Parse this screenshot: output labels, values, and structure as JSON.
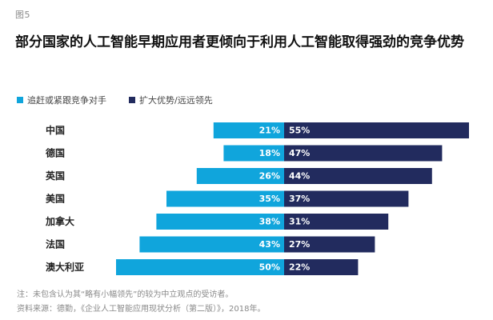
{
  "figure_label": "图5",
  "title": "部分国家的人工智能早期应用者更倾向于利用人工智能取得强劲的竞争优势",
  "legend": [
    {
      "label": "追赶或紧跟竞争对手",
      "color": "#10a5dc"
    },
    {
      "label": "扩大优势/远远领先",
      "color": "#222b5e"
    }
  ],
  "chart_data": {
    "type": "bar",
    "orientation": "horizontal-diverging",
    "categories": [
      "中国",
      "德国",
      "英国",
      "美国",
      "加拿大",
      "法国",
      "澳大利亚"
    ],
    "series": [
      {
        "name": "追赶或紧跟竞争对手",
        "values": [
          21,
          18,
          26,
          35,
          38,
          43,
          50
        ],
        "color": "#10a5dc"
      },
      {
        "name": "扩大优势/远远领先",
        "values": [
          55,
          47,
          44,
          37,
          31,
          27,
          22
        ],
        "color": "#222b5e"
      }
    ],
    "value_suffix": "%",
    "title": "部分国家的人工智能早期应用者更倾向于利用人工智能取得强劲的竞争优势",
    "legend_position": "top-left",
    "grid": false
  },
  "footnotes": [
    "注：未包含认为其“略有小幅领先”的较为中立观点的受访者。",
    "资料来源：德勤，《企业人工智能应用现状分析（第二版）》，2018年。"
  ]
}
